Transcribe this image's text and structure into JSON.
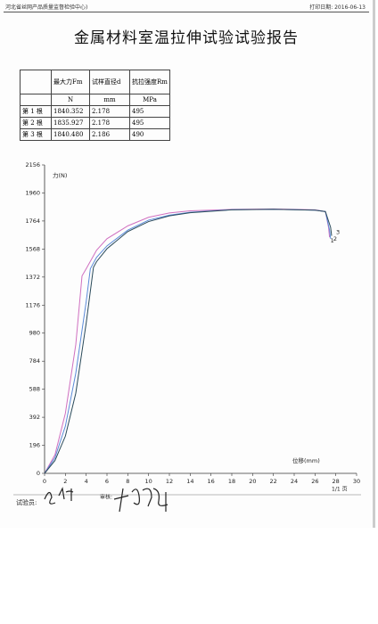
{
  "header": {
    "organization": "河北省丝网产品质量监督检验中心)",
    "print_date": "打印日期: 2016-06-13"
  },
  "title": "金属材料室温拉伸试验试验报告",
  "table": {
    "columns": [
      "最大力Fm",
      "试样直径d",
      "抗拉强度Rm"
    ],
    "units": [
      "N",
      "mm",
      "MPa"
    ],
    "rows": [
      [
        "第 1 根",
        "1840.352",
        "2.178",
        "495"
      ],
      [
        "第 2 根",
        "1835.927",
        "2.178",
        "495"
      ],
      [
        "第 3 根",
        "1840.480",
        "2.186",
        "490"
      ]
    ]
  },
  "chart_data": {
    "type": "line",
    "y_label": "力(N)",
    "x_label": "位移(mm)",
    "xlim": [
      0,
      30
    ],
    "xticks": [
      0,
      2,
      4,
      6,
      8,
      10,
      12,
      14,
      16,
      18,
      20,
      22,
      24,
      26,
      28,
      30
    ],
    "ylim": [
      0,
      2156
    ],
    "yticks": [
      0,
      196,
      392,
      588,
      784,
      980,
      1176,
      1372,
      1568,
      1764,
      1960,
      2156
    ],
    "series": [
      {
        "name": "1",
        "color": "#d070c0",
        "x": [
          0,
          1,
          2,
          3,
          3.6,
          4,
          5,
          6,
          8,
          10,
          12,
          14,
          18,
          22,
          26,
          27,
          27.3,
          27.4
        ],
        "values": [
          0,
          130,
          420,
          900,
          1380,
          1430,
          1560,
          1640,
          1730,
          1790,
          1820,
          1835,
          1845,
          1848,
          1842,
          1830,
          1720,
          1650
        ]
      },
      {
        "name": "2",
        "color": "#5a8ad8",
        "x": [
          0,
          1,
          2,
          3,
          4,
          4.4,
          5,
          6,
          8,
          10,
          12,
          14,
          18,
          22,
          26,
          27,
          27.4,
          27.5
        ],
        "values": [
          0,
          110,
          330,
          700,
          1200,
          1430,
          1510,
          1590,
          1700,
          1770,
          1805,
          1825,
          1843,
          1846,
          1840,
          1830,
          1700,
          1640
        ]
      },
      {
        "name": "3",
        "color": "#2a4a5a",
        "x": [
          0,
          1,
          2,
          3,
          4,
          4.7,
          5,
          6,
          8,
          10,
          12,
          14,
          18,
          22,
          26,
          27,
          27.5,
          27.6
        ],
        "values": [
          0,
          90,
          260,
          560,
          1050,
          1440,
          1480,
          1570,
          1690,
          1760,
          1800,
          1822,
          1842,
          1846,
          1840,
          1830,
          1720,
          1660
        ]
      }
    ]
  },
  "footer": {
    "tester": "试验员:",
    "reviewer": "审核:",
    "page": "1/1 页"
  }
}
